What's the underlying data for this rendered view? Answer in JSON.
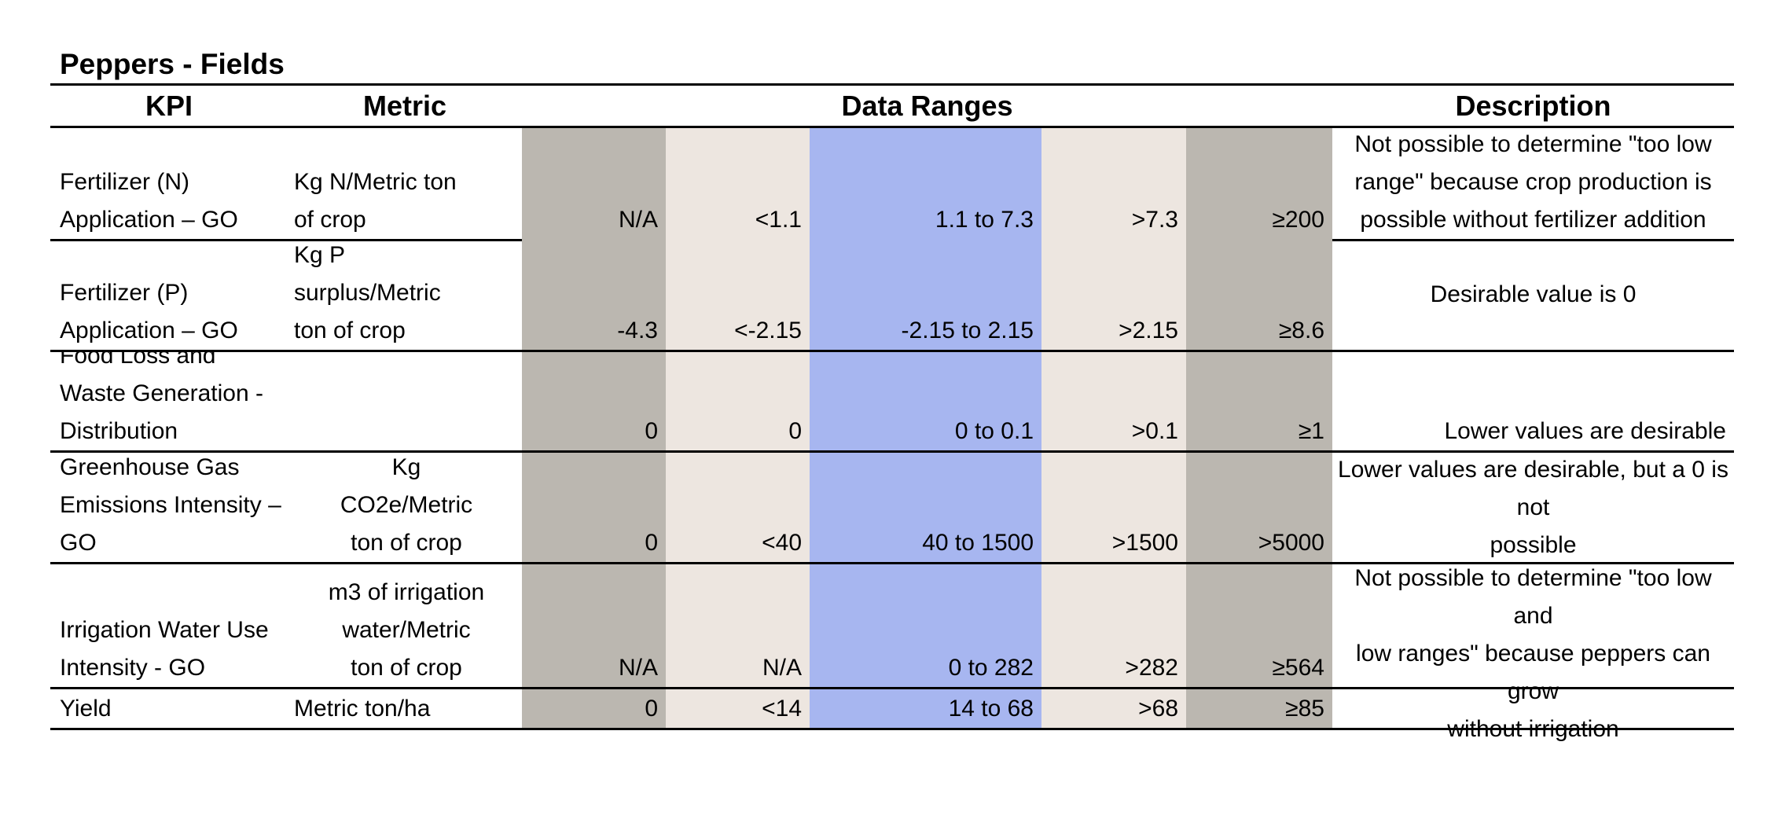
{
  "title": "Peppers - Fields",
  "headers": {
    "kpi": "KPI",
    "metric": "Metric",
    "ranges": "Data Ranges",
    "description": "Description"
  },
  "colors": {
    "too_low": "#bbb7b0",
    "low": "#ede6e0",
    "desirable": "#a7b6f0",
    "high": "#ede6e0",
    "too_high": "#bbb7b0"
  },
  "rows": [
    {
      "kpi": [
        "Fertilizer (N)",
        "Application – GO"
      ],
      "metric": [
        "Kg N/Metric ton",
        "of crop"
      ],
      "ranges": [
        "N/A",
        "<1.1",
        "1.1 to 7.3",
        ">7.3",
        "≥200"
      ],
      "description": [
        "Not possible to determine \"too low",
        "range\" because crop production is",
        "possible without fertilizer addition"
      ]
    },
    {
      "kpi": [
        "Fertilizer (P)",
        "Application – GO"
      ],
      "metric": [
        "Kg P",
        "surplus/Metric",
        "ton of crop"
      ],
      "ranges": [
        "-4.3",
        "<-2.15",
        "-2.15 to 2.15",
        ">2.15",
        "≥8.6"
      ],
      "description": [
        "Desirable value is 0"
      ]
    },
    {
      "kpi": [
        "Food Loss and",
        "Waste Generation -",
        "Distribution"
      ],
      "metric": [],
      "ranges": [
        "0",
        "0",
        "0 to 0.1",
        ">0.1",
        "≥1"
      ],
      "description": [
        "Lower values are desirable"
      ]
    },
    {
      "kpi": [
        "Greenhouse Gas",
        "Emissions Intensity –",
        "GO"
      ],
      "metric": [
        "Kg",
        "CO2e/Metric",
        "ton of crop"
      ],
      "ranges": [
        "0",
        "<40",
        "40 to 1500",
        ">1500",
        ">5000"
      ],
      "description": [
        "Lower values are desirable, but a 0 is not",
        "possible"
      ]
    },
    {
      "kpi": [
        "Irrigation Water Use",
        "Intensity - GO"
      ],
      "metric": [
        "m3 of irrigation",
        "water/Metric",
        "ton of crop"
      ],
      "ranges": [
        "N/A",
        "N/A",
        "0 to 282",
        ">282",
        "≥564"
      ],
      "description": [
        "Not possible to determine \"too low and",
        "low ranges\" because peppers can grow",
        "without irrigation"
      ]
    },
    {
      "kpi": [
        "Yield"
      ],
      "metric": [
        "Metric ton/ha"
      ],
      "ranges": [
        "0",
        "<14",
        "14  to 68",
        ">68",
        "≥85"
      ],
      "description": []
    }
  ]
}
